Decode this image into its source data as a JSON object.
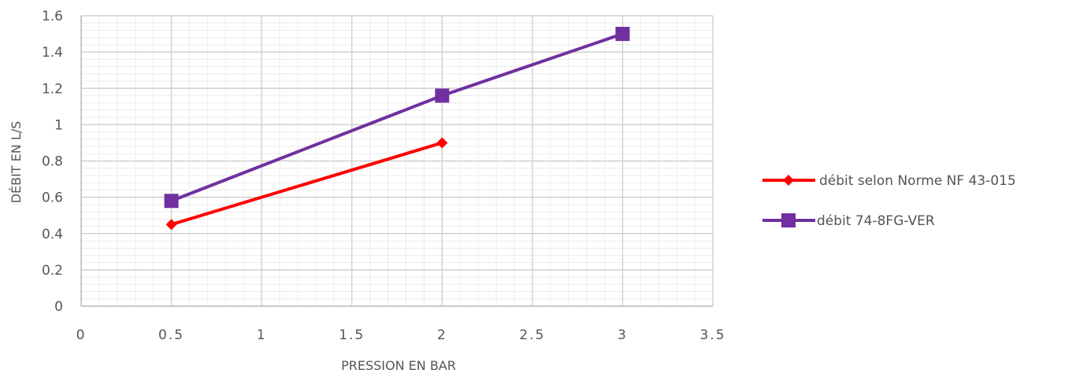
{
  "chart_data": {
    "type": "line",
    "title": "",
    "xlabel": "PRESSION EN BAR",
    "ylabel": "DÉBIT EN L/S",
    "xlim": [
      0,
      3.5
    ],
    "ylim": [
      0,
      1.6
    ],
    "x_ticks": [
      "0",
      "0.5",
      "1",
      "1.5",
      "2",
      "2.5",
      "3",
      "3.5"
    ],
    "y_ticks": [
      "0",
      "0.2",
      "0.4",
      "0.6",
      "0.8",
      "1",
      "1.2",
      "1.4",
      "1.6"
    ],
    "grid": true,
    "legend_position": "right",
    "series": [
      {
        "name": "débit selon Norme NF 43-015",
        "color": "#ff0000",
        "marker": "diamond",
        "x": [
          0.5,
          2
        ],
        "values": [
          0.45,
          0.9
        ]
      },
      {
        "name": "débit 74-8FG-VER",
        "color": "#7030a0",
        "marker": "square",
        "x": [
          0.5,
          2,
          3
        ],
        "values": [
          0.58,
          1.16,
          1.5
        ]
      }
    ]
  }
}
